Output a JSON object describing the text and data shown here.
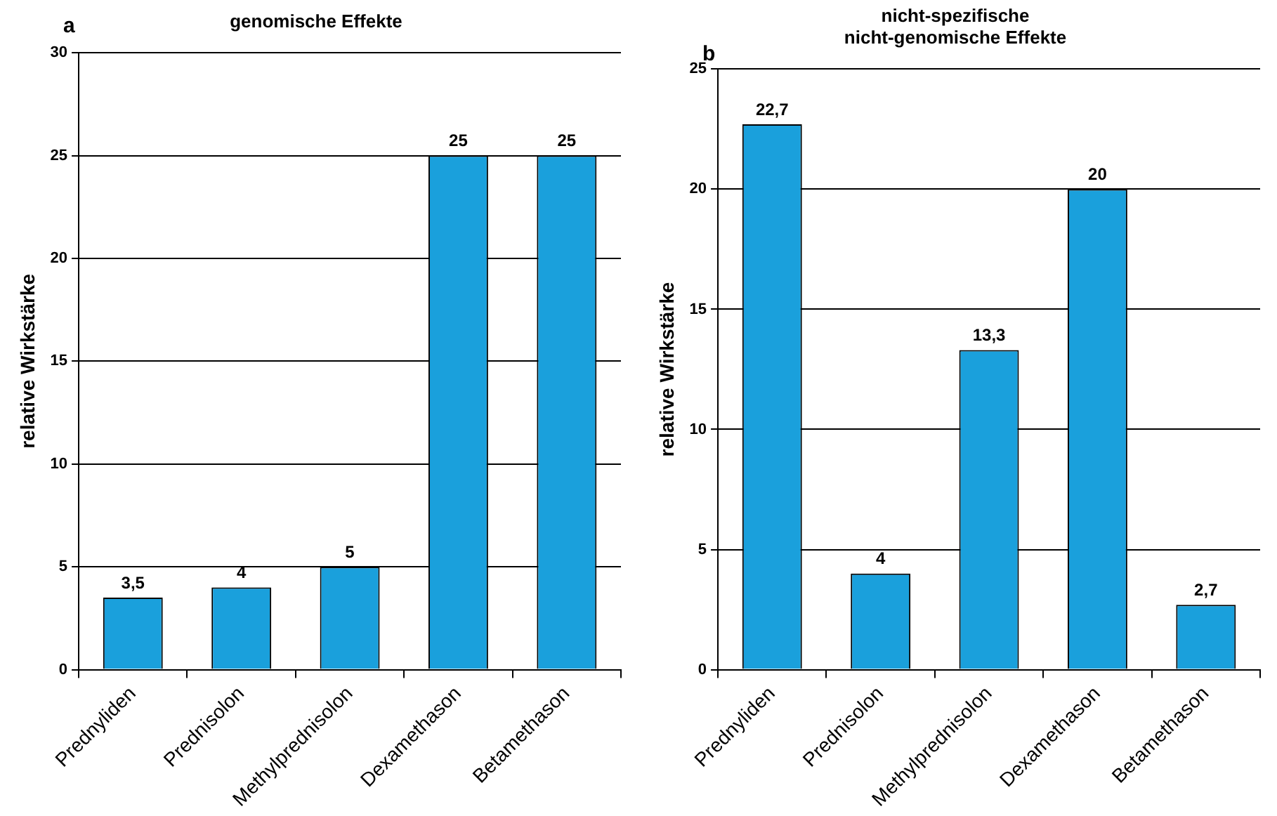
{
  "chart_data": [
    {
      "type": "bar",
      "title": "genomische Effekte",
      "ylabel": "relative Wirkstärke",
      "annotations": [
        "a"
      ],
      "categories": [
        "Prednyliden",
        "Prednisolon",
        "Methylprednisolon",
        "Dexamethason",
        "Betamethason"
      ],
      "values": [
        3.5,
        4,
        5,
        25,
        25
      ],
      "value_labels": [
        "3,5",
        "4",
        "5",
        "25",
        "25"
      ],
      "color": "#1aa0dc",
      "ylim": [
        0,
        30
      ],
      "yticks": [
        0,
        5,
        10,
        15,
        20,
        25,
        30
      ],
      "grid": "y"
    },
    {
      "type": "bar",
      "title": "nicht-spezifische\nnicht-genomische Effekte",
      "ylabel": "relative Wirkstärke",
      "annotations": [
        "b"
      ],
      "categories": [
        "Prednyliden",
        "Prednisolon",
        "Methylprednisolon",
        "Dexamethason",
        "Betamethason"
      ],
      "values": [
        22.7,
        4,
        13.3,
        20,
        2.7
      ],
      "value_labels": [
        "22,7",
        "4",
        "13,3",
        "20",
        "2,7"
      ],
      "color": "#1aa0dc",
      "ylim": [
        0,
        25
      ],
      "yticks": [
        0,
        5,
        10,
        15,
        20,
        25
      ],
      "grid": "y"
    }
  ]
}
